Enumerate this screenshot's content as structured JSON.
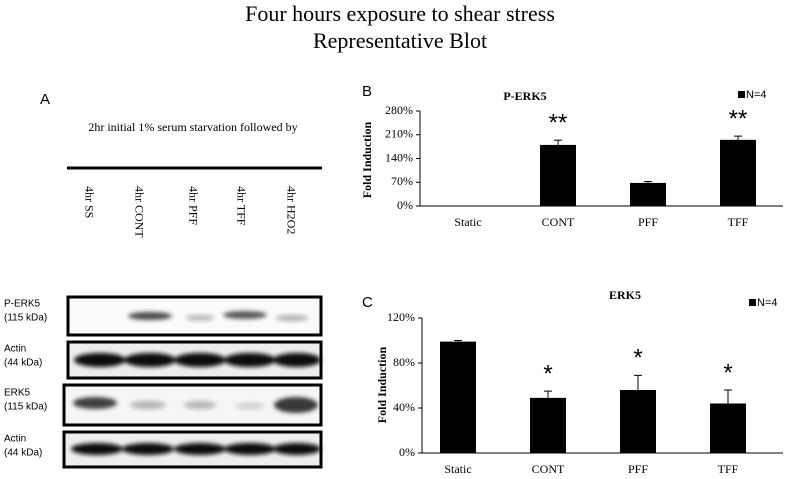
{
  "figure": {
    "title": [
      "Four hours exposure to shear stress",
      "Representative Blot"
    ],
    "panel_a": {
      "letter": "A",
      "caption": "2hr initial 1% serum starvation followed by",
      "lanes": [
        "4hr  SS",
        "4hr  CONT",
        "4hr  PFF",
        "4hr  TFF",
        "4hr  H2O2"
      ],
      "blots": [
        {
          "name": "P-ERK5",
          "size": "(115 kDa)"
        },
        {
          "name": "Actin",
          "size": "(44 kDa)"
        },
        {
          "name": "ERK5",
          "size": "(115 kDa)"
        },
        {
          "name": "Actin",
          "size": "(44 kDa)"
        }
      ]
    }
  },
  "chart_data": [
    {
      "type": "bar",
      "panel": "B",
      "title": "P-ERK5",
      "ylabel": "Fold Induction",
      "categories": [
        "Static",
        "CONT",
        "PFF",
        "TFF"
      ],
      "series": [
        {
          "name": "N=4",
          "color": "#000000",
          "values": [
            0,
            180,
            68,
            195
          ],
          "errors": [
            0,
            14,
            4,
            11
          ]
        }
      ],
      "annotations": [
        null,
        "**",
        null,
        "**"
      ],
      "ylim": [
        0,
        280
      ],
      "yticks": [
        {
          "value": 0,
          "label": "0%"
        },
        {
          "value": 70,
          "label": "70%"
        },
        {
          "value": 140,
          "label": "140%"
        },
        {
          "value": 210,
          "label": "210%"
        },
        {
          "value": 280,
          "label": "280%"
        }
      ],
      "legend": "upper right"
    },
    {
      "type": "bar",
      "panel": "C",
      "title": "ERK5",
      "ylabel": "Fold Induction",
      "categories": [
        "Static",
        "CONT",
        "PFF",
        "TFF"
      ],
      "series": [
        {
          "name": "N=4",
          "color": "#000000",
          "values": [
            99,
            49,
            56,
            44
          ],
          "errors": [
            1,
            6,
            13,
            12
          ]
        }
      ],
      "annotations": [
        null,
        "*",
        "*",
        "*"
      ],
      "ylim": [
        0,
        120
      ],
      "yticks": [
        {
          "value": 0,
          "label": "0%"
        },
        {
          "value": 40,
          "label": "40%"
        },
        {
          "value": 80,
          "label": "80%"
        },
        {
          "value": 120,
          "label": "120%"
        }
      ],
      "legend": "upper right"
    }
  ]
}
